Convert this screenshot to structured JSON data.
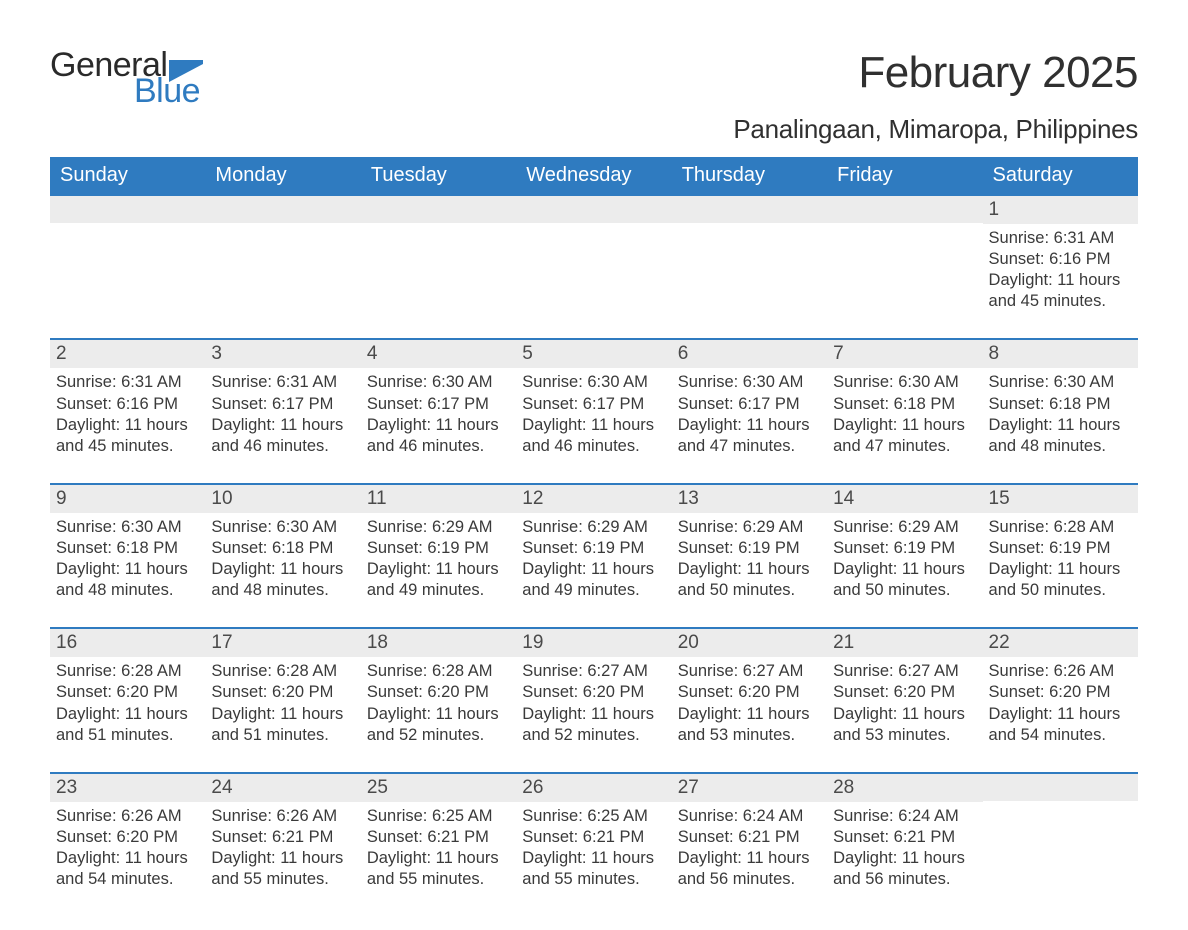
{
  "brand": {
    "word1": "General",
    "word2": "Blue",
    "logo_color": "#2f7bc0",
    "text_color": "#2a2a2a"
  },
  "title": "February 2025",
  "location": "Panalingaan, Mimaropa, Philippines",
  "colors": {
    "header_bg": "#2f7bc0",
    "header_text": "#ffffff",
    "daynum_bg": "#ececec",
    "week_border": "#2f7bc0",
    "body_text": "#3a3a3a",
    "page_bg": "#ffffff"
  },
  "fonts": {
    "title_size_pt": 33,
    "location_size_pt": 20,
    "dow_size_pt": 15,
    "daynum_size_pt": 14,
    "body_size_pt": 12.5,
    "family": "Arial"
  },
  "days_of_week": [
    "Sunday",
    "Monday",
    "Tuesday",
    "Wednesday",
    "Thursday",
    "Friday",
    "Saturday"
  ],
  "weeks": [
    [
      {
        "n": "",
        "sunrise": "",
        "sunset": "",
        "daylight": ""
      },
      {
        "n": "",
        "sunrise": "",
        "sunset": "",
        "daylight": ""
      },
      {
        "n": "",
        "sunrise": "",
        "sunset": "",
        "daylight": ""
      },
      {
        "n": "",
        "sunrise": "",
        "sunset": "",
        "daylight": ""
      },
      {
        "n": "",
        "sunrise": "",
        "sunset": "",
        "daylight": ""
      },
      {
        "n": "",
        "sunrise": "",
        "sunset": "",
        "daylight": ""
      },
      {
        "n": "1",
        "sunrise": "Sunrise: 6:31 AM",
        "sunset": "Sunset: 6:16 PM",
        "daylight": "Daylight: 11 hours and 45 minutes."
      }
    ],
    [
      {
        "n": "2",
        "sunrise": "Sunrise: 6:31 AM",
        "sunset": "Sunset: 6:16 PM",
        "daylight": "Daylight: 11 hours and 45 minutes."
      },
      {
        "n": "3",
        "sunrise": "Sunrise: 6:31 AM",
        "sunset": "Sunset: 6:17 PM",
        "daylight": "Daylight: 11 hours and 46 minutes."
      },
      {
        "n": "4",
        "sunrise": "Sunrise: 6:30 AM",
        "sunset": "Sunset: 6:17 PM",
        "daylight": "Daylight: 11 hours and 46 minutes."
      },
      {
        "n": "5",
        "sunrise": "Sunrise: 6:30 AM",
        "sunset": "Sunset: 6:17 PM",
        "daylight": "Daylight: 11 hours and 46 minutes."
      },
      {
        "n": "6",
        "sunrise": "Sunrise: 6:30 AM",
        "sunset": "Sunset: 6:17 PM",
        "daylight": "Daylight: 11 hours and 47 minutes."
      },
      {
        "n": "7",
        "sunrise": "Sunrise: 6:30 AM",
        "sunset": "Sunset: 6:18 PM",
        "daylight": "Daylight: 11 hours and 47 minutes."
      },
      {
        "n": "8",
        "sunrise": "Sunrise: 6:30 AM",
        "sunset": "Sunset: 6:18 PM",
        "daylight": "Daylight: 11 hours and 48 minutes."
      }
    ],
    [
      {
        "n": "9",
        "sunrise": "Sunrise: 6:30 AM",
        "sunset": "Sunset: 6:18 PM",
        "daylight": "Daylight: 11 hours and 48 minutes."
      },
      {
        "n": "10",
        "sunrise": "Sunrise: 6:30 AM",
        "sunset": "Sunset: 6:18 PM",
        "daylight": "Daylight: 11 hours and 48 minutes."
      },
      {
        "n": "11",
        "sunrise": "Sunrise: 6:29 AM",
        "sunset": "Sunset: 6:19 PM",
        "daylight": "Daylight: 11 hours and 49 minutes."
      },
      {
        "n": "12",
        "sunrise": "Sunrise: 6:29 AM",
        "sunset": "Sunset: 6:19 PM",
        "daylight": "Daylight: 11 hours and 49 minutes."
      },
      {
        "n": "13",
        "sunrise": "Sunrise: 6:29 AM",
        "sunset": "Sunset: 6:19 PM",
        "daylight": "Daylight: 11 hours and 50 minutes."
      },
      {
        "n": "14",
        "sunrise": "Sunrise: 6:29 AM",
        "sunset": "Sunset: 6:19 PM",
        "daylight": "Daylight: 11 hours and 50 minutes."
      },
      {
        "n": "15",
        "sunrise": "Sunrise: 6:28 AM",
        "sunset": "Sunset: 6:19 PM",
        "daylight": "Daylight: 11 hours and 50 minutes."
      }
    ],
    [
      {
        "n": "16",
        "sunrise": "Sunrise: 6:28 AM",
        "sunset": "Sunset: 6:20 PM",
        "daylight": "Daylight: 11 hours and 51 minutes."
      },
      {
        "n": "17",
        "sunrise": "Sunrise: 6:28 AM",
        "sunset": "Sunset: 6:20 PM",
        "daylight": "Daylight: 11 hours and 51 minutes."
      },
      {
        "n": "18",
        "sunrise": "Sunrise: 6:28 AM",
        "sunset": "Sunset: 6:20 PM",
        "daylight": "Daylight: 11 hours and 52 minutes."
      },
      {
        "n": "19",
        "sunrise": "Sunrise: 6:27 AM",
        "sunset": "Sunset: 6:20 PM",
        "daylight": "Daylight: 11 hours and 52 minutes."
      },
      {
        "n": "20",
        "sunrise": "Sunrise: 6:27 AM",
        "sunset": "Sunset: 6:20 PM",
        "daylight": "Daylight: 11 hours and 53 minutes."
      },
      {
        "n": "21",
        "sunrise": "Sunrise: 6:27 AM",
        "sunset": "Sunset: 6:20 PM",
        "daylight": "Daylight: 11 hours and 53 minutes."
      },
      {
        "n": "22",
        "sunrise": "Sunrise: 6:26 AM",
        "sunset": "Sunset: 6:20 PM",
        "daylight": "Daylight: 11 hours and 54 minutes."
      }
    ],
    [
      {
        "n": "23",
        "sunrise": "Sunrise: 6:26 AM",
        "sunset": "Sunset: 6:20 PM",
        "daylight": "Daylight: 11 hours and 54 minutes."
      },
      {
        "n": "24",
        "sunrise": "Sunrise: 6:26 AM",
        "sunset": "Sunset: 6:21 PM",
        "daylight": "Daylight: 11 hours and 55 minutes."
      },
      {
        "n": "25",
        "sunrise": "Sunrise: 6:25 AM",
        "sunset": "Sunset: 6:21 PM",
        "daylight": "Daylight: 11 hours and 55 minutes."
      },
      {
        "n": "26",
        "sunrise": "Sunrise: 6:25 AM",
        "sunset": "Sunset: 6:21 PM",
        "daylight": "Daylight: 11 hours and 55 minutes."
      },
      {
        "n": "27",
        "sunrise": "Sunrise: 6:24 AM",
        "sunset": "Sunset: 6:21 PM",
        "daylight": "Daylight: 11 hours and 56 minutes."
      },
      {
        "n": "28",
        "sunrise": "Sunrise: 6:24 AM",
        "sunset": "Sunset: 6:21 PM",
        "daylight": "Daylight: 11 hours and 56 minutes."
      },
      {
        "n": "",
        "sunrise": "",
        "sunset": "",
        "daylight": ""
      }
    ]
  ]
}
